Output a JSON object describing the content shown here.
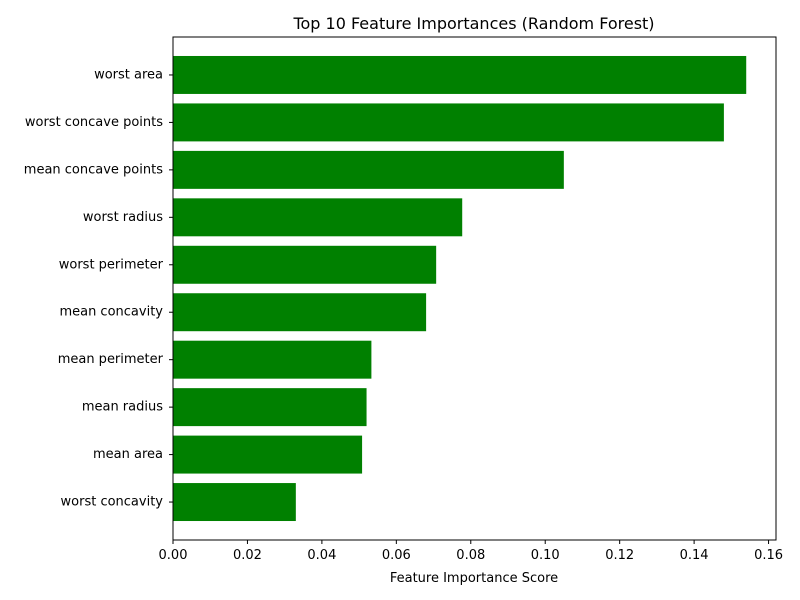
{
  "chart_data": {
    "type": "bar",
    "orientation": "horizontal",
    "title": "Top 10 Feature Importances (Random Forest)",
    "xlabel": "Feature Importance Score",
    "ylabel": "",
    "xlim": [
      0,
      0.162
    ],
    "x_ticks": [
      0.0,
      0.02,
      0.04,
      0.06,
      0.08,
      0.1,
      0.12,
      0.14,
      0.16
    ],
    "x_tick_labels": [
      "0.00",
      "0.02",
      "0.04",
      "0.06",
      "0.08",
      "0.10",
      "0.12",
      "0.14",
      "0.16"
    ],
    "categories": [
      "worst area",
      "worst concave points",
      "mean concave points",
      "worst radius",
      "worst perimeter",
      "mean concavity",
      "mean perimeter",
      "mean radius",
      "mean area",
      "worst concavity"
    ],
    "values": [
      0.154,
      0.148,
      0.105,
      0.0777,
      0.0707,
      0.068,
      0.0533,
      0.052,
      0.0508,
      0.033
    ],
    "bar_color": "#008000",
    "grid": false,
    "legend": "none"
  }
}
